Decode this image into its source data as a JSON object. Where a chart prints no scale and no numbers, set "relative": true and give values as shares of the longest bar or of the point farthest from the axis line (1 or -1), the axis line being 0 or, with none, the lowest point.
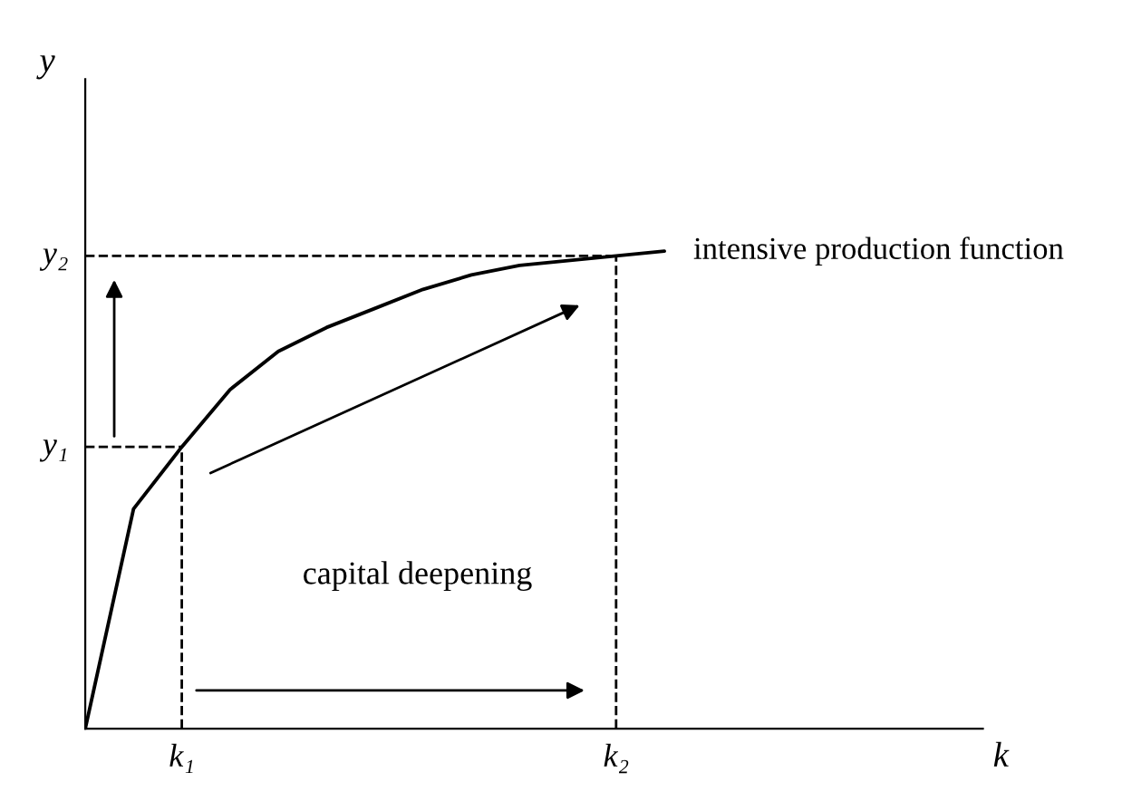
{
  "chart_data": {
    "type": "line",
    "relative": true,
    "ylabel": "y",
    "categories": [
      null,
      null,
      "k₁",
      null,
      null,
      null,
      null,
      null,
      null,
      null,
      null,
      "k₂",
      null
    ],
    "series": [
      {
        "name": "intensive production function",
        "color": "#000000",
        "values": [
          0,
          0.46,
          0.59,
          0.71,
          0.79,
          0.84,
          0.88,
          0.92,
          0.95,
          0.97,
          0.98,
          0.99,
          1
        ]
      }
    ],
    "ref_lines": [
      {
        "axis": "y",
        "value": 0.59,
        "label": "y₁",
        "line_style": "dashed"
      },
      {
        "axis": "y",
        "value": 0.99,
        "label": "y₂",
        "line_style": "dashed"
      }
    ],
    "annotations": [
      "capital deepening",
      "k"
    ],
    "line_style": "solid",
    "marker": "none",
    "grid": false,
    "legend": false
  }
}
